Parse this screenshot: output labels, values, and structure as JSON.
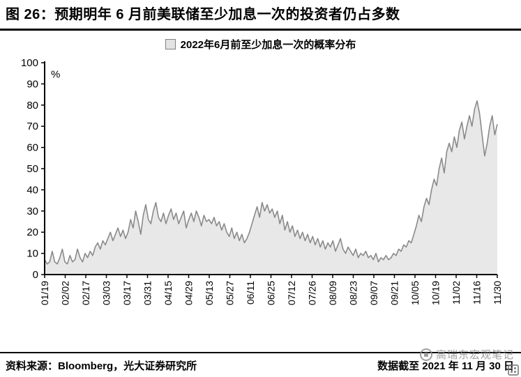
{
  "figure": {
    "title": "图 26：预期明年 6 月前美联储至少加息一次的投资者仍占多数"
  },
  "legend": {
    "label": "2022年6月前至少加息一次的概率分布"
  },
  "footer": {
    "source": "资料来源：Bloomberg，光大证券研究所",
    "note": "数据截至 2021 年 11 月 30 日"
  },
  "watermark": {
    "text": "高瑞东宏观笔记"
  },
  "chart_data": {
    "type": "area",
    "title": "2022年6月前至少加息一次的概率分布",
    "xlabel": "",
    "ylabel": "%",
    "ylim": [
      0,
      100
    ],
    "yticks": [
      0,
      10,
      20,
      30,
      40,
      50,
      60,
      70,
      80,
      90,
      100
    ],
    "grid": false,
    "legend_position": "top-center",
    "x_tick_labels": [
      "01/19",
      "02/02",
      "02/17",
      "03/03",
      "03/17",
      "03/31",
      "04/15",
      "04/29",
      "05/13",
      "05/27",
      "06/11",
      "06/25",
      "07/12",
      "07/26",
      "08/09",
      "08/23",
      "09/07",
      "09/21",
      "10/05",
      "10/19",
      "11/02",
      "11/16",
      "11/30"
    ],
    "values": [
      7,
      5,
      6,
      11,
      6,
      5,
      8,
      12,
      6,
      5,
      9,
      6,
      7,
      12,
      8,
      6,
      10,
      8,
      11,
      9,
      13,
      15,
      12,
      16,
      14,
      17,
      20,
      16,
      19,
      22,
      18,
      21,
      17,
      20,
      26,
      22,
      30,
      25,
      19,
      28,
      33,
      26,
      24,
      30,
      34,
      27,
      25,
      29,
      24,
      28,
      31,
      26,
      29,
      24,
      27,
      30,
      22,
      26,
      29,
      25,
      30,
      27,
      23,
      28,
      25,
      26,
      24,
      27,
      23,
      25,
      21,
      24,
      20,
      18,
      22,
      17,
      20,
      16,
      19,
      15,
      17,
      20,
      24,
      28,
      32,
      27,
      34,
      30,
      33,
      29,
      31,
      27,
      30,
      24,
      28,
      21,
      25,
      20,
      23,
      18,
      21,
      17,
      20,
      16,
      19,
      15,
      18,
      14,
      17,
      13,
      16,
      12,
      15,
      13,
      16,
      11,
      14,
      17,
      12,
      10,
      13,
      11,
      9,
      12,
      8,
      10,
      9,
      11,
      8,
      9,
      7,
      10,
      6,
      8,
      7,
      9,
      7,
      8,
      10,
      9,
      12,
      11,
      14,
      13,
      16,
      15,
      19,
      23,
      28,
      25,
      32,
      36,
      33,
      40,
      45,
      42,
      50,
      55,
      48,
      58,
      62,
      58,
      65,
      60,
      68,
      72,
      64,
      70,
      75,
      70,
      78,
      82,
      76,
      66,
      56,
      62,
      70,
      75,
      66,
      71
    ],
    "colors": {
      "fill": "#e8e8e8",
      "stroke": "#8a8a8a",
      "axis": "#000000"
    }
  }
}
